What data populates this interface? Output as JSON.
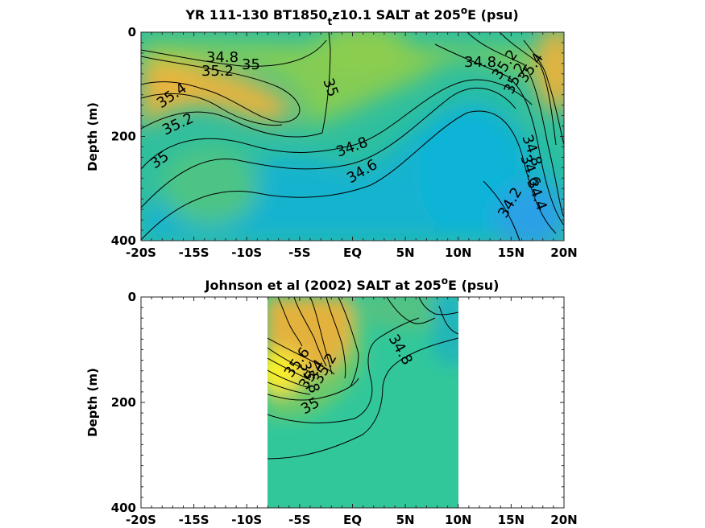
{
  "chart_data": [
    {
      "type": "heatmap",
      "title_main": "YR 111-130 BT1850",
      "title_sub": "t",
      "title_rest": "z10.1 SALT at 205",
      "title_sup": "o",
      "title_end": "E (psu)",
      "ylabel": "Depth (m)",
      "xlim": [
        -20,
        20
      ],
      "ylim": [
        400,
        0
      ],
      "x_ticks": [
        -20,
        -15,
        -10,
        -5,
        0,
        5,
        10,
        15,
        20
      ],
      "x_tick_labels": [
        "-20S",
        "-15S",
        "-10S",
        "-5S",
        "EQ",
        "5N",
        "10N",
        "15N",
        "20N"
      ],
      "y_ticks": [
        0,
        200,
        400
      ],
      "y_tick_labels": [
        "0",
        "200",
        "400"
      ],
      "contour_labels": [
        "34.8",
        "35.2",
        "35",
        "35.4",
        "35.2",
        "35",
        "35",
        "34.8",
        "34.6",
        "34.8",
        "35.2",
        "35.4",
        "35.2",
        "34.8",
        "34.6",
        "34.4",
        "34.2"
      ]
    },
    {
      "type": "heatmap",
      "title_main": "Johnson et al (2002) SALT at 205",
      "title_sup": "o",
      "title_end": "E (psu)",
      "ylabel": "Depth (m)",
      "xlim": [
        -20,
        20
      ],
      "ylim": [
        400,
        0
      ],
      "data_xrange": [
        -8,
        10
      ],
      "x_ticks": [
        -20,
        -15,
        -10,
        -5,
        0,
        5,
        10,
        15,
        20
      ],
      "x_tick_labels": [
        "-20S",
        "-15S",
        "-10S",
        "-5S",
        "EQ",
        "5N",
        "10N",
        "15N",
        "20N"
      ],
      "y_ticks": [
        0,
        200,
        400
      ],
      "y_tick_labels": [
        "0",
        "200",
        "400"
      ],
      "contour_labels": [
        "34.8",
        "35.8",
        "35.6",
        "35.4",
        "35.2",
        "35"
      ]
    }
  ]
}
